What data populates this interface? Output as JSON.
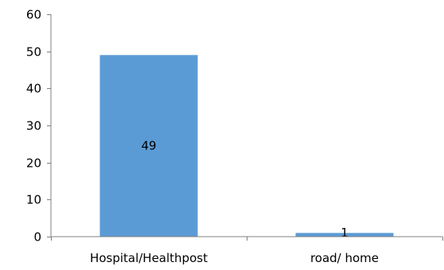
{
  "chart_data": {
    "type": "bar",
    "title": "",
    "xlabel": "",
    "ylabel": "",
    "categories": [
      "Hospital/Healthpost",
      "road/ home"
    ],
    "values": [
      49,
      1
    ],
    "data_labels": [
      "49",
      "1"
    ],
    "yticks": [
      "0",
      "10",
      "20",
      "30",
      "40",
      "50",
      "60"
    ],
    "ylim": [
      0,
      60
    ],
    "grid": false,
    "legend": "none",
    "bar_color": "#5b9bd5"
  }
}
